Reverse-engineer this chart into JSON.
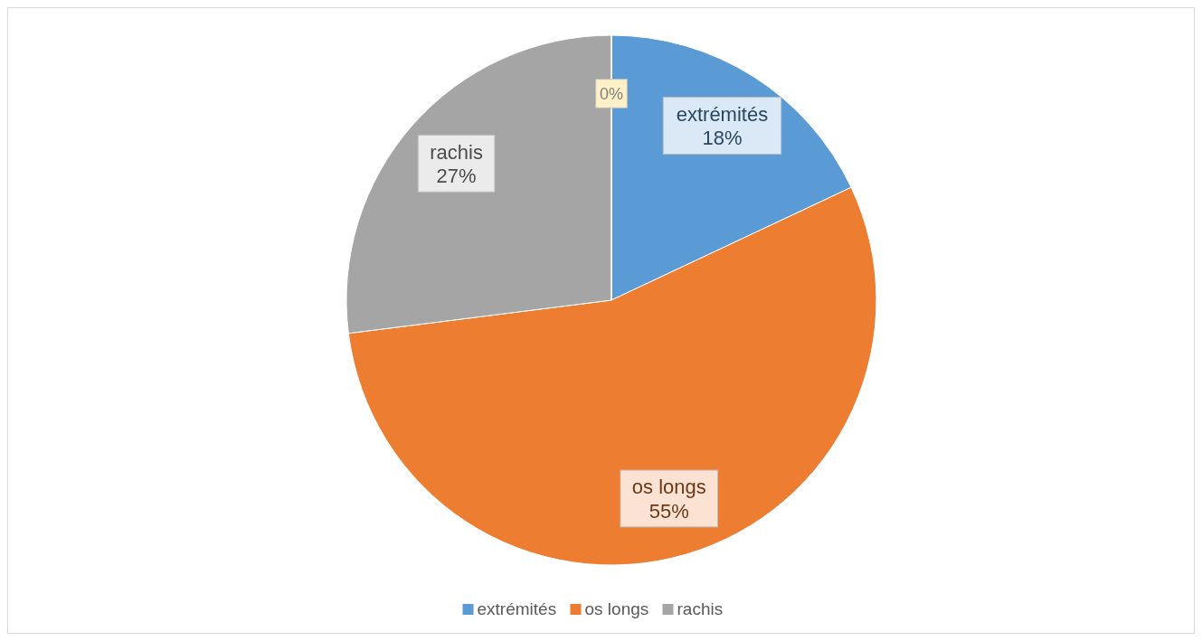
{
  "chart_data": {
    "type": "pie",
    "categories": [
      "extrémités",
      "os longs",
      "rachis",
      null
    ],
    "values": [
      18,
      55,
      27,
      0
    ],
    "colors": [
      "#5b9bd5",
      "#ed7d31",
      "#a5a5a5",
      "#ffc000"
    ],
    "value_labels": [
      "18%",
      "55%",
      "27%",
      "0%"
    ],
    "legend": "bottom"
  }
}
